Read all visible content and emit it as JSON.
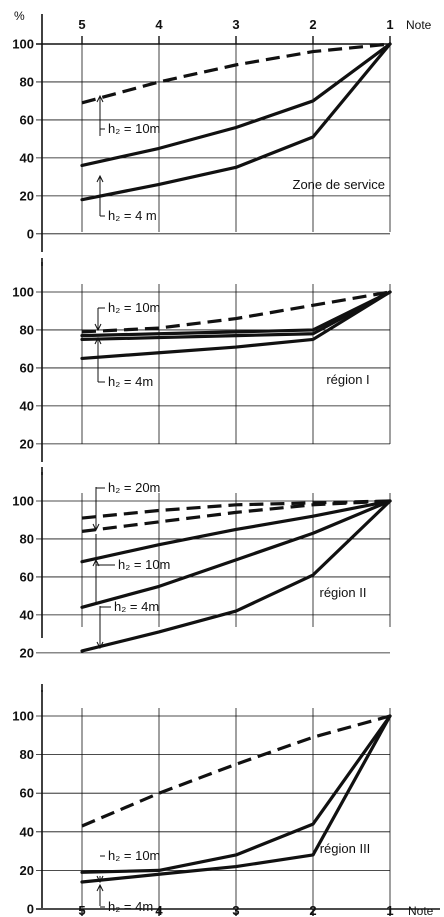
{
  "chart_data": [
    {
      "type": "line",
      "title": "",
      "region_label": "Zone de service",
      "x": [
        5,
        4,
        3,
        2,
        1
      ],
      "y_ticks": [
        0,
        20,
        40,
        60,
        80,
        100
      ],
      "ylim": [
        -10,
        110
      ],
      "top_x_labels": [
        "5",
        "4",
        "3",
        "2",
        "1"
      ],
      "y_unit": "%",
      "x_unit": "Note",
      "series": [
        {
          "style": "dashed",
          "values": [
            69,
            80,
            89,
            96,
            100
          ]
        },
        {
          "style": "solid",
          "values": [
            36,
            45,
            56,
            70,
            100
          ]
        },
        {
          "style": "solid",
          "values": [
            18,
            26,
            35,
            51,
            100
          ]
        }
      ],
      "annotations": [
        {
          "label": "h₂ = 10m"
        },
        {
          "label": "h₂ = 4 m"
        }
      ]
    },
    {
      "type": "line",
      "region_label": "région I",
      "x": [
        5,
        4,
        3,
        2,
        1
      ],
      "y_ticks": [
        20,
        40,
        60,
        80,
        100
      ],
      "ylim": [
        10,
        110
      ],
      "series": [
        {
          "style": "dashed",
          "values": [
            79,
            81,
            86,
            93,
            100
          ]
        },
        {
          "style": "solid",
          "values": [
            77,
            78,
            79,
            80,
            100
          ]
        },
        {
          "style": "solid",
          "values": [
            75,
            76,
            77,
            78,
            100
          ]
        },
        {
          "style": "solid",
          "values": [
            65,
            68,
            71,
            75,
            100
          ]
        }
      ],
      "annotations": [
        {
          "label": "h₂ = 10m"
        },
        {
          "label": "h₂ = 4m"
        }
      ]
    },
    {
      "type": "line",
      "region_label": "région II",
      "x": [
        5,
        4,
        3,
        2,
        1
      ],
      "y_ticks": [
        20,
        40,
        60,
        80,
        100
      ],
      "ylim": [
        10,
        110
      ],
      "series": [
        {
          "style": "dashed",
          "values": [
            91,
            95,
            98,
            99,
            100
          ]
        },
        {
          "style": "dashed",
          "values": [
            84,
            89,
            94,
            98,
            100
          ]
        },
        {
          "style": "solid",
          "values": [
            68,
            77,
            85,
            92,
            100
          ]
        },
        {
          "style": "solid",
          "values": [
            44,
            55,
            69,
            83,
            100
          ]
        },
        {
          "style": "solid",
          "values": [
            21,
            31,
            42,
            61,
            100
          ]
        }
      ],
      "annotations": [
        {
          "label": "h₂ = 20m"
        },
        {
          "label": "h₂ = 10m"
        },
        {
          "label": "h₂ = 4m"
        }
      ]
    },
    {
      "type": "line",
      "region_label": "région III",
      "x": [
        5,
        4,
        3,
        2,
        1
      ],
      "y_ticks": [
        0,
        20,
        40,
        60,
        80,
        100
      ],
      "ylim": [
        -5,
        110
      ],
      "bottom_x_labels": [
        "5",
        "4",
        "3",
        "2",
        "1"
      ],
      "x_unit": "Note",
      "series": [
        {
          "style": "dashed",
          "values": [
            43,
            60,
            75,
            89,
            100
          ]
        },
        {
          "style": "solid",
          "values": [
            19,
            20,
            28,
            44,
            100
          ]
        },
        {
          "style": "solid",
          "values": [
            14,
            18,
            22,
            28,
            100
          ]
        }
      ],
      "annotations": [
        {
          "label": "h₂ = 10m"
        },
        {
          "label": "h₂ = 4m"
        }
      ]
    }
  ]
}
